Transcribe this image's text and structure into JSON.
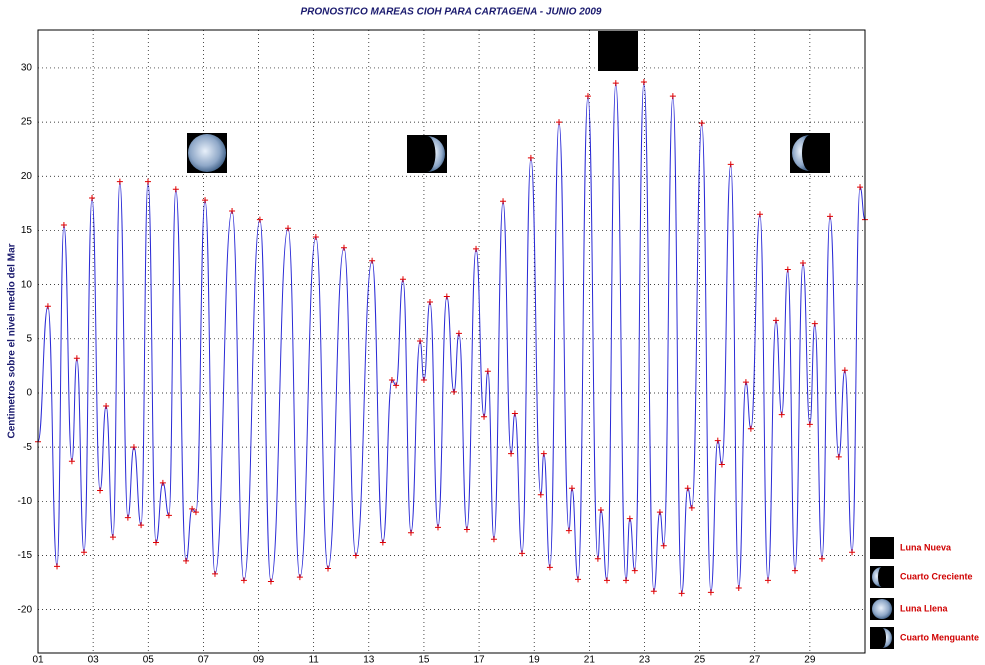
{
  "chart_data": {
    "type": "line",
    "title": "PRONOSTICO MAREAS CIOH PARA CARTAGENA - JUNIO 2009",
    "y_label": "Centimetros sobre el nivel medio del Mar",
    "xlim": [
      1,
      31
    ],
    "ylim": [
      -24,
      33.5
    ],
    "xticks": [
      {
        "value": 1,
        "label": "01"
      },
      {
        "value": 3,
        "label": "03"
      },
      {
        "value": 5,
        "label": "05"
      },
      {
        "value": 7,
        "label": "07"
      },
      {
        "value": 9,
        "label": "09"
      },
      11,
      13,
      15,
      17,
      19,
      21,
      23,
      25,
      27,
      29
    ],
    "yticks": [
      -20,
      -15,
      -10,
      -5,
      0,
      5,
      10,
      15,
      20,
      25,
      30
    ],
    "grid": true,
    "legend": [
      "Luna Nueva",
      "Cuarto Creciente",
      "Luna Llena",
      "Cuarto Menguante"
    ],
    "series": [
      {
        "color": "#2b2bd6",
        "marker_color": "#e00000",
        "x": [
          1.0,
          1.36,
          1.69,
          1.94,
          2.23,
          2.41,
          2.67,
          2.96,
          3.25,
          3.47,
          3.72,
          3.97,
          4.26,
          4.48,
          4.74,
          4.99,
          5.28,
          5.53,
          5.75,
          6.0,
          6.37,
          6.59,
          6.73,
          7.06,
          7.42,
          8.04,
          8.47,
          9.05,
          9.45,
          10.07,
          10.5,
          11.08,
          11.52,
          12.1,
          12.53,
          13.12,
          13.51,
          13.84,
          13.99,
          14.24,
          14.53,
          14.86,
          15.0,
          15.22,
          15.51,
          15.83,
          16.09,
          16.27,
          16.56,
          16.89,
          17.18,
          17.32,
          17.54,
          17.87,
          18.16,
          18.3,
          18.56,
          18.88,
          19.24,
          19.35,
          19.57,
          19.9,
          20.26,
          20.37,
          20.59,
          20.95,
          21.31,
          21.42,
          21.64,
          21.96,
          22.33,
          22.47,
          22.65,
          22.98,
          23.34,
          23.56,
          23.7,
          24.03,
          24.35,
          24.57,
          24.72,
          25.08,
          25.41,
          25.66,
          25.81,
          26.13,
          26.42,
          26.68,
          26.86,
          27.19,
          27.48,
          27.77,
          27.98,
          28.2,
          28.46,
          28.75,
          29.0,
          29.18,
          29.44,
          29.73,
          30.05,
          30.27,
          30.53,
          30.82,
          31.0
        ],
        "values": [
          -4.5,
          8,
          -16,
          15.5,
          -6.3,
          3.2,
          -14.7,
          18,
          -9,
          -1.2,
          -13.3,
          19.5,
          -11.5,
          -5,
          -12.2,
          19.5,
          -13.8,
          -8.3,
          -11.3,
          18.8,
          -15.5,
          -10.7,
          -11,
          17.8,
          -16.7,
          16.8,
          -17.3,
          16,
          -17.4,
          15.2,
          -17,
          14.4,
          -16.2,
          13.4,
          -15,
          12.2,
          -13.8,
          1.2,
          0.7,
          10.5,
          -12.9,
          4.8,
          1.2,
          8.4,
          -12.4,
          8.9,
          0.1,
          5.5,
          -12.6,
          13.3,
          -2.2,
          2,
          -13.5,
          17.7,
          -5.6,
          -1.9,
          -14.8,
          21.7,
          -9.4,
          -5.6,
          -16.1,
          25,
          -12.7,
          -8.8,
          -17.2,
          27.4,
          -15.3,
          -10.8,
          -17.3,
          28.6,
          -17.3,
          -11.6,
          -16.4,
          28.7,
          -18.3,
          -11,
          -14.1,
          27.4,
          -18.5,
          -8.8,
          -10.6,
          24.9,
          -18.4,
          -4.4,
          -6.6,
          21.1,
          -18,
          1,
          -3.3,
          16.5,
          -17.3,
          6.7,
          -2,
          11.4,
          -16.4,
          12,
          -2.9,
          6.4,
          -15.3,
          16.3,
          -5.9,
          2.1,
          -14.7,
          19,
          16
        ]
      }
    ]
  }
}
